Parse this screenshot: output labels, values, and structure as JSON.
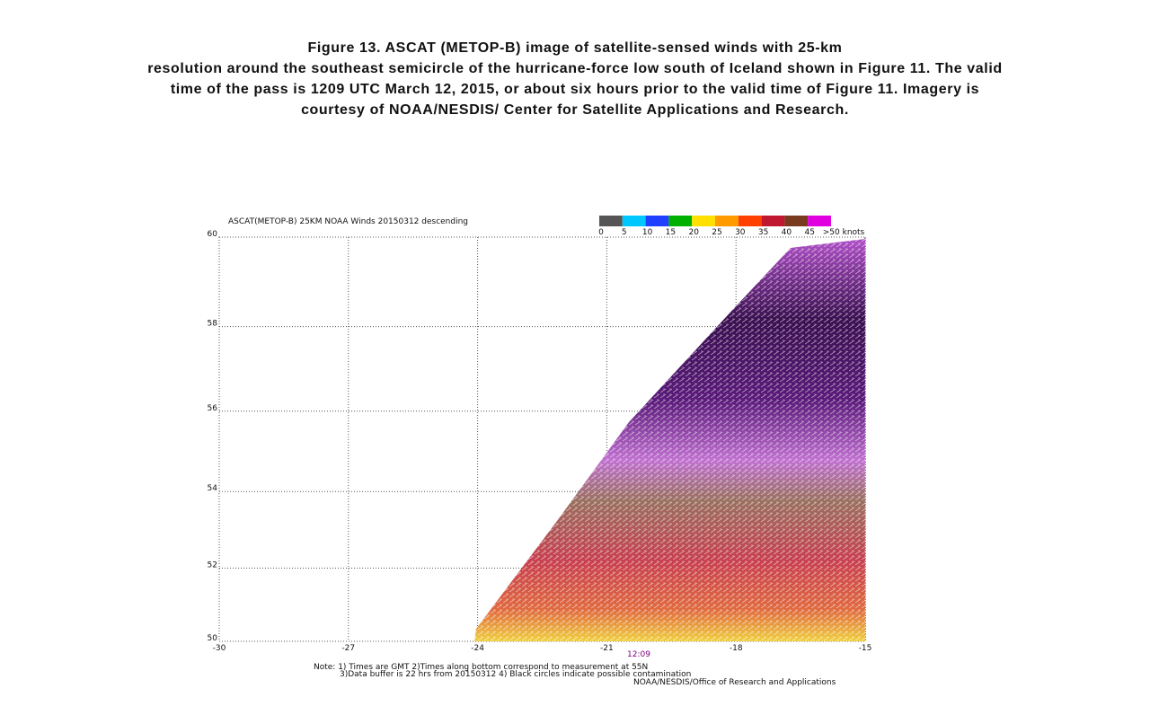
{
  "caption": {
    "lines": [
      "Figure 13.  ASCAT (METOP-B) image of satellite-sensed winds with 25-km",
      "resolution around the southeast semicircle of the hurricane-force low south of Iceland shown in Figure 11.  The valid",
      "time of the pass is 1209 UTC March 12, 2015, or about six hours prior to the valid time of Figure 11.  Imagery is",
      "courtesy of NOAA/NESDIS/ Center for Satellite Applications and Research."
    ]
  },
  "map": {
    "title": "ASCAT(METOP-B) 25KM NOAA Winds 20150312 descending",
    "colorbar_labels": [
      "0",
      "5",
      "10",
      "15",
      "20",
      "25",
      "30",
      "35",
      "40",
      "45",
      ">50 knots"
    ],
    "lat_ticks": [
      60,
      58,
      56,
      54,
      52,
      50
    ],
    "lon_ticks": [
      -30,
      -27,
      -24,
      -21,
      -18,
      -15
    ],
    "time_label": "12:09",
    "notes": [
      "Note: 1) Times are GMT 2)Times along bottom correspond to measurement at 55N",
      "3)Data buffer is 22 hrs from 20150312 4) Black circles indicate possible contamination",
      "NOAA/NESDIS/Office of Research and Applications"
    ]
  }
}
